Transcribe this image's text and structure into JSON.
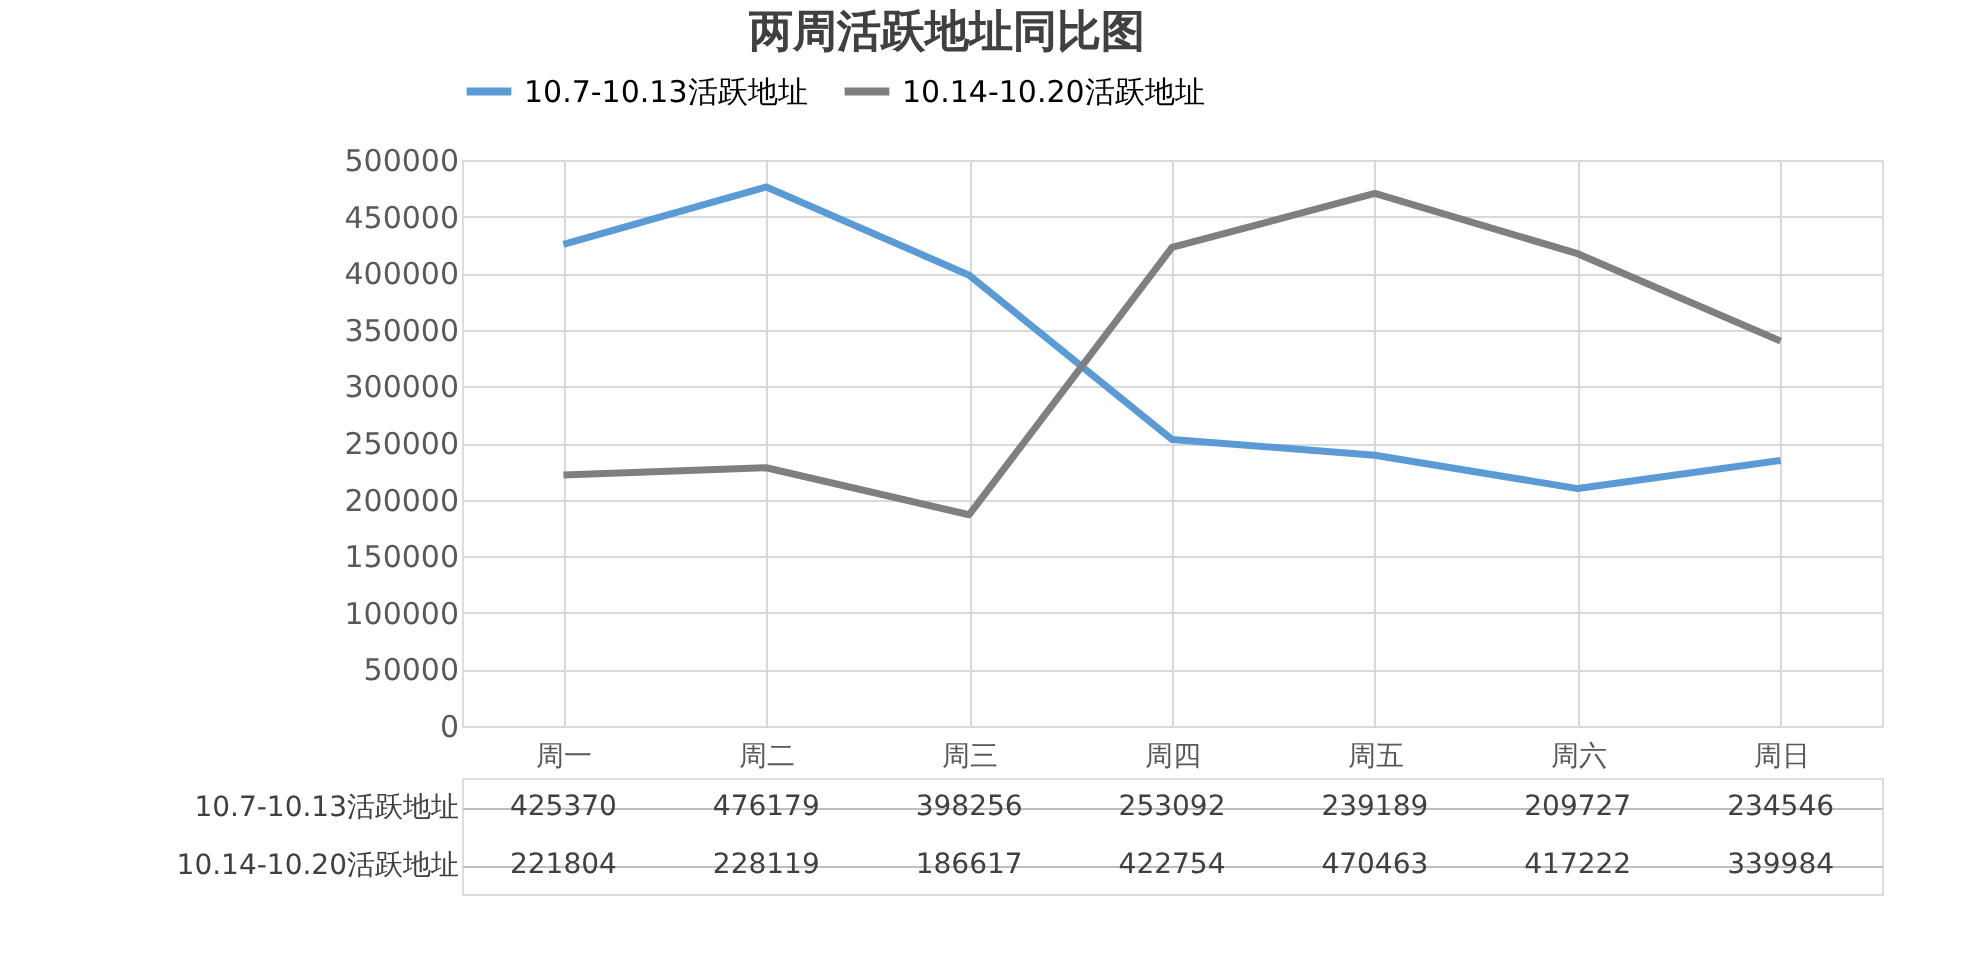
{
  "chart_data": {
    "type": "line",
    "title": "两周活跃地址同比图",
    "categories": [
      "周一",
      "周二",
      "周三",
      "周四",
      "周五",
      "周六",
      "周日"
    ],
    "series": [
      {
        "name": "10.7-10.13活跃地址",
        "color": "#5b9bd5",
        "values": [
          425370,
          476179,
          398256,
          253092,
          239189,
          209727,
          234546
        ]
      },
      {
        "name": "10.14-10.20活跃地址",
        "color": "#7f7f7f",
        "values": [
          221804,
          228119,
          186617,
          422754,
          470463,
          417222,
          339984
        ]
      }
    ],
    "ylim": [
      0,
      500000
    ],
    "yticks": [
      0,
      50000,
      100000,
      150000,
      200000,
      250000,
      300000,
      350000,
      400000,
      450000,
      500000
    ],
    "grid": true,
    "legend": "top",
    "marker": "none",
    "line_style": "solid",
    "data_labels": true
  }
}
